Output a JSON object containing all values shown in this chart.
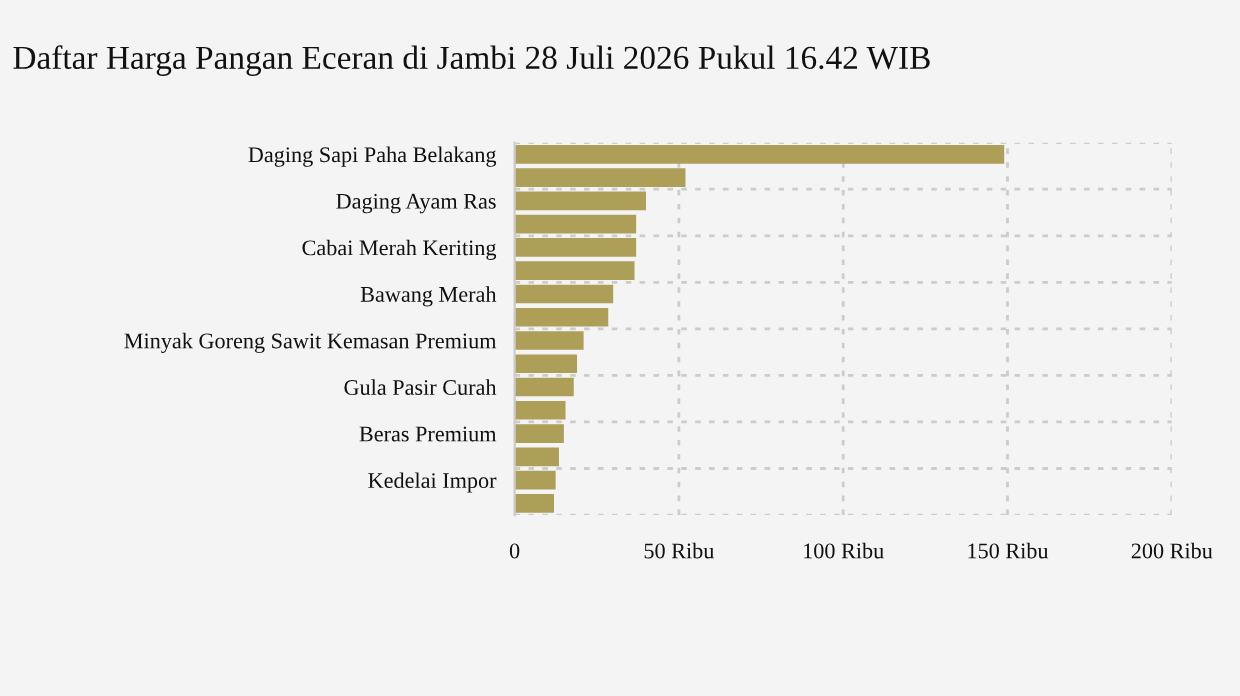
{
  "chart_data": {
    "type": "bar",
    "orientation": "horizontal",
    "title": "Daftar Harga Pangan Eceran di Jambi 28 Juli 2026 Pukul 16.42 WIB",
    "categories": [
      "Daging Sapi Paha Belakang",
      null,
      "Daging Ayam Ras",
      null,
      "Cabai Merah Keriting",
      null,
      "Bawang Merah",
      null,
      "Minyak Goreng Sawit Kemasan Premium",
      null,
      "Gula Pasir Curah",
      null,
      "Beras Premium",
      null,
      "Kedelai Impor",
      null
    ],
    "values": [
      149,
      52,
      40,
      37,
      37,
      36.5,
      30,
      28.5,
      21,
      19,
      18,
      15.5,
      15,
      13.5,
      12.5,
      12
    ],
    "color": "#ae9f58",
    "xlim": [
      0,
      200
    ],
    "xticks": [
      0,
      {
        "value": 50,
        "label": "50 Ribu"
      },
      {
        "value": 100,
        "label": "100 Ribu"
      },
      {
        "value": 150,
        "label": "150 Ribu"
      },
      {
        "value": 200,
        "label": "200 Ribu"
      }
    ],
    "grid": true
  }
}
